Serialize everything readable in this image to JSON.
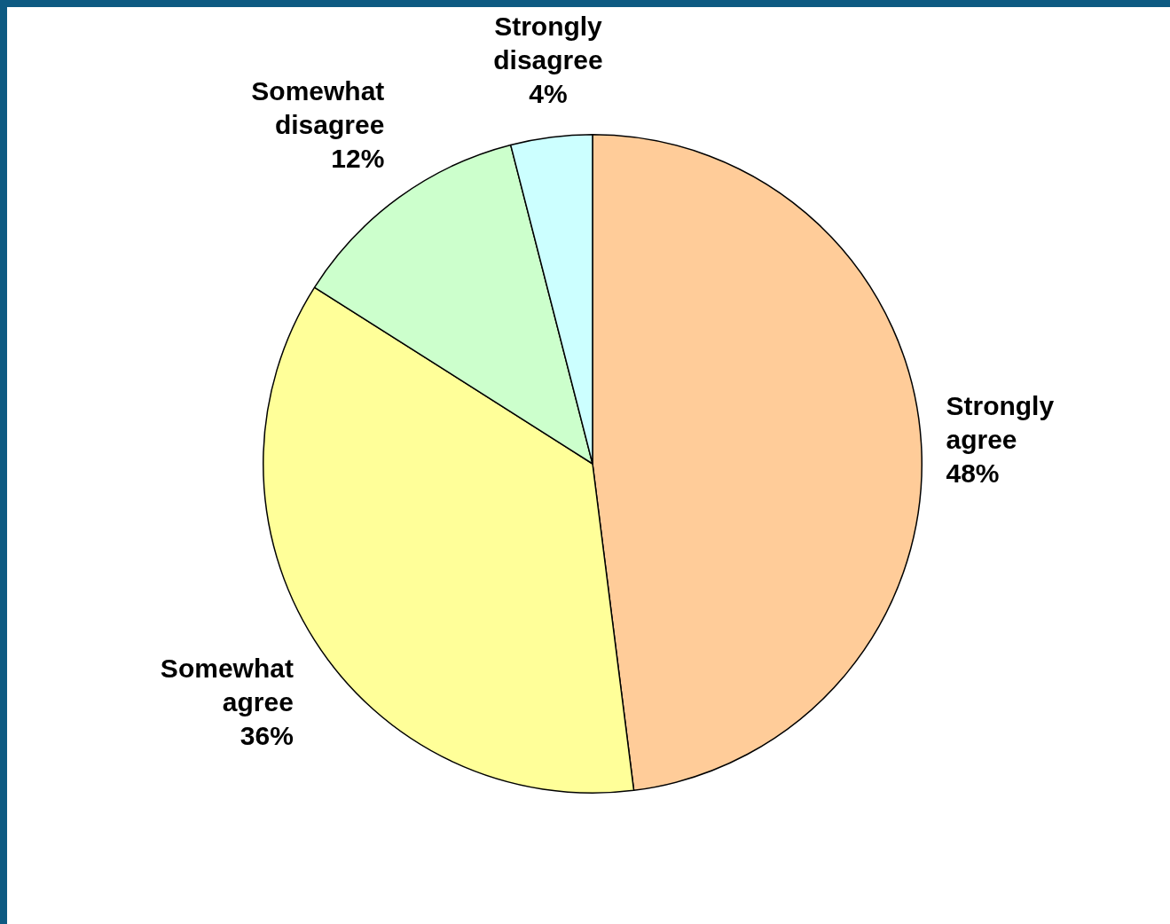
{
  "chart_data": {
    "type": "pie",
    "categories": [
      "Strongly agree",
      "Somewhat agree",
      "Somewhat disagree",
      "Strongly disagree"
    ],
    "values": [
      48,
      36,
      12,
      4
    ],
    "value_labels": [
      "48%",
      "36%",
      "12%",
      "4%"
    ],
    "colors": [
      "#ffcc99",
      "#ffff99",
      "#ccffcc",
      "#ccffff"
    ],
    "legend": false
  }
}
